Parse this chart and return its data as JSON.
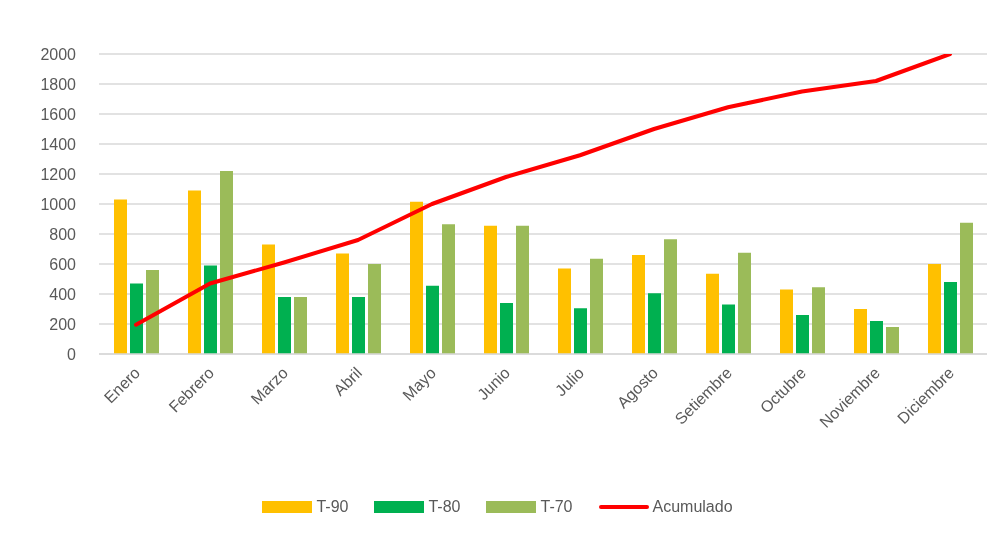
{
  "chart_data": {
    "type": "bar",
    "categories": [
      "Enero",
      "Febrero",
      "Marzo",
      "Abril",
      "Mayo",
      "Junio",
      "Julio",
      "Agosto",
      "Setiembre",
      "Octubre",
      "Noviembre",
      "Diciembre"
    ],
    "series": [
      {
        "name": "T-90",
        "color": "#ffc000",
        "values": [
          1030,
          1090,
          730,
          670,
          1015,
          855,
          570,
          660,
          535,
          430,
          300,
          600
        ]
      },
      {
        "name": "T-80",
        "color": "#00b050",
        "values": [
          470,
          590,
          380,
          380,
          455,
          340,
          305,
          405,
          330,
          260,
          220,
          480
        ]
      },
      {
        "name": "T-70",
        "color": "#9bbb59",
        "values": [
          560,
          1220,
          380,
          600,
          865,
          855,
          635,
          765,
          675,
          445,
          180,
          875
        ]
      },
      {
        "name": "Acumulado",
        "type": "line",
        "color": "#ff0000",
        "values": [
          195,
          470,
          610,
          760,
          1000,
          1180,
          1325,
          1500,
          1645,
          1750,
          1820,
          2000
        ]
      }
    ],
    "ylim": [
      0,
      2000
    ],
    "yticks": [
      0,
      200,
      400,
      600,
      800,
      1000,
      1200,
      1400,
      1600,
      1800,
      2000
    ],
    "grid": "y",
    "legend": "bottom"
  }
}
